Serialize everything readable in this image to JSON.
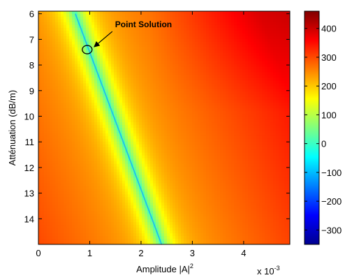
{
  "chart_data": {
    "type": "heatmap",
    "title": "",
    "xlabel": "Amplitude |A|",
    "xlabel_superscript": "2",
    "ylabel": "Atténuation (dB/m)",
    "x_multiplier": "x 10",
    "x_multiplier_exponent": "-3",
    "xlim": [
      0,
      0.0049
    ],
    "ylim": [
      5.9,
      15
    ],
    "y_reversed": true,
    "x_ticks": [
      0,
      0.001,
      0.002,
      0.003,
      0.004
    ],
    "x_tick_labels": [
      "0",
      "1",
      "2",
      "3",
      "4"
    ],
    "y_ticks": [
      6,
      7,
      8,
      9,
      10,
      11,
      12,
      13,
      14
    ],
    "y_tick_labels": [
      "6",
      "7",
      "8",
      "9",
      "10",
      "11",
      "12",
      "13",
      "14"
    ],
    "colorbar": {
      "colormap": "jet",
      "range": [
        -350,
        460
      ],
      "ticks": [
        -300,
        -200,
        -100,
        0,
        100,
        200,
        300,
        400
      ],
      "tick_labels": [
        "−300",
        "−200",
        "−100",
        "0",
        "100",
        "200",
        "300",
        "400"
      ]
    },
    "zero_line": {
      "points": [
        [
          0.00072,
          6.0
        ],
        [
          0.0024,
          15.0
        ]
      ]
    },
    "marker": {
      "label": "Point Solution",
      "x": 0.00095,
      "y": 7.4
    }
  }
}
